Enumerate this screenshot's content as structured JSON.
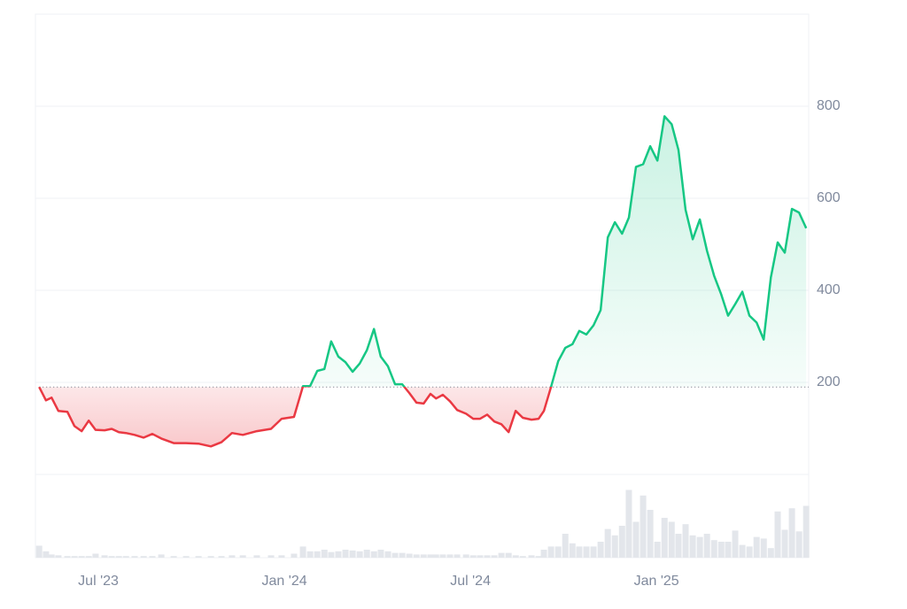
{
  "chart_data": {
    "type": "line",
    "x": [
      4.09,
      4.31,
      4.49,
      4.71,
      5.0,
      5.23,
      5.46,
      5.69,
      5.91,
      6.2,
      6.43,
      6.66,
      6.89,
      7.17,
      7.46,
      7.74,
      8.03,
      8.43,
      8.83,
      9.23,
      9.63,
      9.97,
      10.31,
      10.66,
      11.11,
      11.57,
      11.91,
      12.31,
      12.6,
      12.83,
      13.06,
      13.29,
      13.51,
      13.74,
      13.97,
      14.2,
      14.43,
      14.66,
      14.89,
      15.11,
      15.34,
      15.57,
      15.8,
      16.03,
      16.26,
      16.49,
      16.71,
      16.89,
      17.11,
      17.34,
      17.57,
      17.86,
      18.09,
      18.31,
      18.54,
      18.77,
      19.0,
      19.23,
      19.46,
      19.69,
      19.97,
      20.2,
      20.37,
      20.6,
      20.83,
      21.06,
      21.29,
      21.51,
      21.74,
      21.97,
      22.2,
      22.43,
      22.66,
      22.89,
      23.11,
      23.34,
      23.57,
      23.8,
      24.03,
      24.26,
      24.49,
      24.71,
      24.94,
      25.17,
      25.4,
      25.63,
      25.86,
      26.09,
      26.31,
      26.54,
      26.77,
      27.0,
      27.23,
      27.46,
      27.69,
      27.91,
      28.14,
      28.37,
      28.6,
      28.83
    ],
    "xlim": [
      3.97,
      28.91
    ],
    "xticks": [
      {
        "value": 6,
        "label": "Jul '23"
      },
      {
        "value": 12,
        "label": "Jan '24"
      },
      {
        "value": 18,
        "label": "Jul '24"
      },
      {
        "value": 24,
        "label": "Jan '25"
      }
    ],
    "series": [
      {
        "values": [
          190,
          161,
          167,
          138,
          136,
          105,
          94,
          117,
          97,
          96,
          99,
          92,
          90,
          86,
          80,
          88,
          78,
          68,
          68,
          67,
          61,
          70,
          90,
          86,
          94,
          99,
          121,
          125,
          192,
          192,
          225,
          229,
          289,
          256,
          244,
          223,
          241,
          270,
          316,
          256,
          235,
          196,
          196,
          177,
          156,
          154,
          175,
          165,
          173,
          159,
          140,
          132,
          121,
          121,
          130,
          115,
          109,
          92,
          138,
          123,
          119,
          121,
          138,
          190,
          246,
          275,
          283,
          312,
          304,
          324,
          357,
          515,
          548,
          523,
          558,
          668,
          674,
          713,
          682,
          778,
          761,
          705,
          575,
          511,
          554,
          486,
          432,
          391,
          345,
          370,
          397,
          345,
          330,
          293,
          428,
          504,
          482,
          577,
          569,
          535
        ],
        "up_color": "#16c784",
        "down_color": "#ea3943"
      }
    ],
    "baseline": 190,
    "ylim": [
      0,
      1000
    ],
    "yticks": [
      200,
      400,
      600,
      800
    ],
    "grid": true,
    "volume": {
      "values": [
        15,
        8,
        4,
        3,
        2,
        2,
        2,
        2,
        5,
        3,
        2,
        2,
        2,
        2,
        2,
        2,
        4,
        2,
        2,
        2,
        2,
        2,
        3,
        3,
        3,
        3,
        3,
        5,
        14,
        8,
        8,
        10,
        7,
        8,
        10,
        9,
        8,
        10,
        8,
        10,
        8,
        6,
        6,
        5,
        4,
        4,
        4,
        4,
        4,
        4,
        4,
        4,
        3,
        3,
        3,
        3,
        6,
        6,
        3,
        2,
        3,
        2,
        10,
        14,
        14,
        30,
        18,
        14,
        14,
        14,
        20,
        36,
        28,
        40,
        85,
        45,
        78,
        60,
        20,
        50,
        45,
        30,
        42,
        28,
        26,
        30,
        22,
        20,
        20,
        34,
        16,
        14,
        26,
        24,
        12,
        58,
        35,
        62,
        33,
        65
      ],
      "ylim": [
        0,
        100
      ],
      "color": "#e3e6eb"
    }
  }
}
